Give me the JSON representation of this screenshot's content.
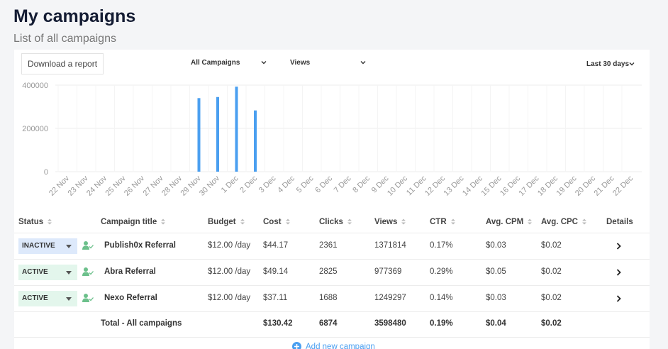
{
  "header": {
    "title": "My campaigns",
    "subtitle": "List of all campaigns"
  },
  "toolbar": {
    "download_button": "Download a report",
    "campaign_filter": "All Campaigns",
    "metric_filter": "Views",
    "date_range": "Last 30 days"
  },
  "chart_data": {
    "type": "bar",
    "categories": [
      "22 Nov",
      "23 Nov",
      "24 Nov",
      "25 Nov",
      "26 Nov",
      "27 Nov",
      "28 Nov",
      "29 Nov",
      "30 Nov",
      "1 Dec",
      "2 Dec",
      "3 Dec",
      "4 Dec",
      "5 Dec",
      "6 Dec",
      "7 Dec",
      "8 Dec",
      "9 Dec",
      "10 Dec",
      "11 Dec",
      "12 Dec",
      "13 Dec",
      "14 Dec",
      "15 Dec",
      "16 Dec",
      "17 Dec",
      "18 Dec",
      "19 Dec",
      "20 Dec",
      "21 Dec",
      "22 Dec"
    ],
    "values": [
      0,
      0,
      0,
      0,
      0,
      0,
      0,
      340000,
      345000,
      393000,
      283000,
      0,
      0,
      0,
      0,
      0,
      0,
      0,
      0,
      0,
      0,
      0,
      0,
      0,
      0,
      0,
      0,
      0,
      0,
      0,
      0
    ],
    "color": "#4a9ff0",
    "ylim": [
      0,
      400000
    ],
    "yticks": [
      0,
      200000,
      400000
    ],
    "grid": true
  },
  "table": {
    "columns": [
      "Status",
      "Campaign title",
      "Budget",
      "Cost",
      "Clicks",
      "Views",
      "CTR",
      "Avg. CPM",
      "Avg. CPC",
      "Details"
    ],
    "rows": [
      [
        "INACTIVE",
        "Publish0x Referral",
        "$12.00 /day",
        "$44.17",
        "2361",
        "1371814",
        "0.17%",
        "$0.03",
        "$0.02"
      ],
      [
        "ACTIVE",
        "Abra Referral",
        "$12.00 /day",
        "$49.14",
        "2825",
        "977369",
        "0.29%",
        "$0.05",
        "$0.02"
      ],
      [
        "ACTIVE",
        "Nexo Referral",
        "$12.00 /day",
        "$37.11",
        "1688",
        "1249297",
        "0.14%",
        "$0.03",
        "$0.02"
      ]
    ],
    "total": {
      "label": "Total - All campaigns",
      "cost": "$130.42",
      "clicks": "6874",
      "views": "3598480",
      "ctr": "0.19%",
      "cpm": "$0.04",
      "cpc": "$0.02"
    }
  },
  "add_campaign": "Add new campaign"
}
